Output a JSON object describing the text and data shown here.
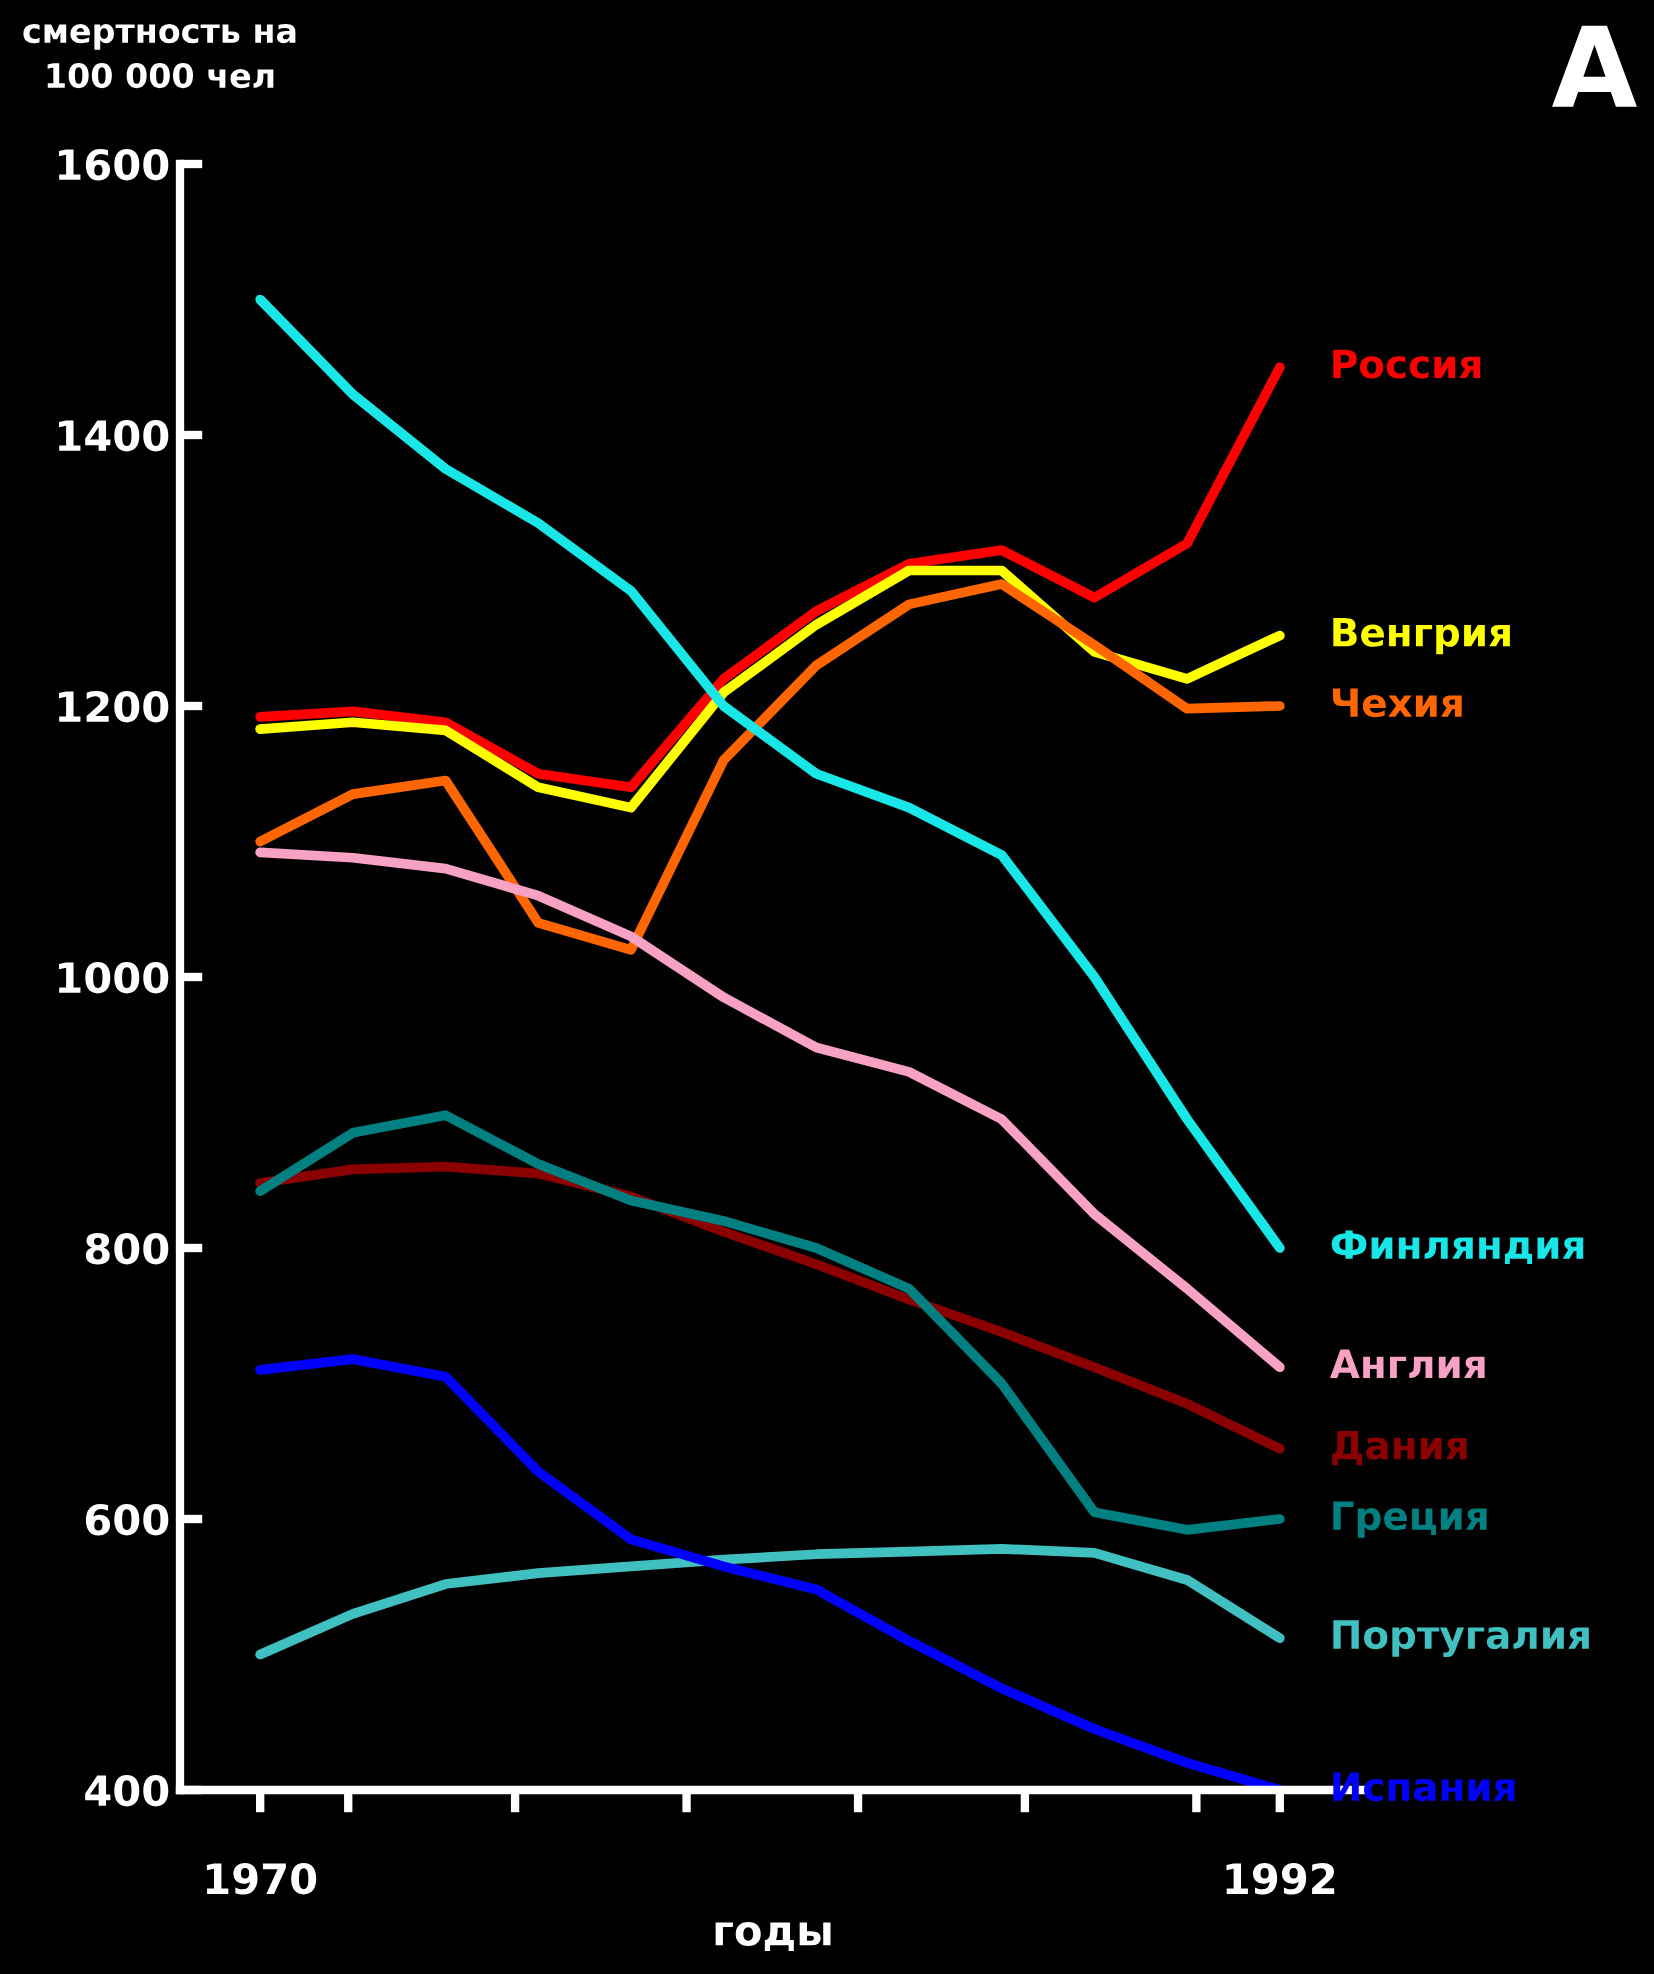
{
  "chart_data": {
    "type": "line",
    "ylabel": "смертность на\n100 000 чел",
    "xlabel": "годы",
    "annotations": [
      "A"
    ],
    "x": [
      1970,
      1972,
      1974,
      1976,
      1978,
      1980,
      1982,
      1984,
      1986,
      1988,
      1990,
      1992
    ],
    "series": [
      {
        "name": "Россия",
        "color": "#ff0000",
        "values": [
          1192,
          1196,
          1188,
          1150,
          1140,
          1220,
          1270,
          1305,
          1315,
          1280,
          1320,
          1450
        ]
      },
      {
        "name": "Венгрия",
        "color": "#ffff00",
        "values": [
          1183,
          1188,
          1182,
          1140,
          1125,
          1210,
          1260,
          1300,
          1300,
          1240,
          1220,
          1252
        ]
      },
      {
        "name": "Чехия",
        "color": "#ff6600",
        "values": [
          1100,
          1135,
          1145,
          1040,
          1020,
          1160,
          1230,
          1275,
          1290,
          1245,
          1198,
          1200
        ]
      },
      {
        "name": "Финляндия",
        "color": "#19e6e6",
        "values": [
          1500,
          1430,
          1375,
          1335,
          1285,
          1200,
          1150,
          1125,
          1090,
          1000,
          895,
          800
        ]
      },
      {
        "name": "Англия",
        "color": "#f7a1c4",
        "values": [
          1092,
          1088,
          1080,
          1060,
          1030,
          985,
          948,
          930,
          895,
          825,
          770,
          712
        ]
      },
      {
        "name": "Дания",
        "color": "#8b0000",
        "values": [
          848,
          858,
          860,
          855,
          838,
          812,
          788,
          762,
          738,
          712,
          685,
          652
        ]
      },
      {
        "name": "Греция",
        "color": "#008080",
        "values": [
          842,
          885,
          898,
          862,
          835,
          820,
          800,
          770,
          700,
          605,
          592,
          600
        ]
      },
      {
        "name": "Португалия",
        "color": "#40c0c0",
        "values": [
          500,
          530,
          552,
          560,
          565,
          570,
          574,
          576,
          578,
          575,
          555,
          512
        ]
      },
      {
        "name": "Испания",
        "color": "#0000ff",
        "values": [
          710,
          718,
          705,
          635,
          585,
          565,
          548,
          510,
          475,
          445,
          420,
          400
        ]
      }
    ],
    "xlim": [
      1968.27,
      1993.86
    ],
    "xticks": [
      {
        "value": 1970,
        "label": "1970"
      },
      {
        "value": 1971.9,
        "label": null
      },
      {
        "value": 1975.5,
        "label": null
      },
      {
        "value": 1979.2,
        "label": null
      },
      {
        "value": 1982.9,
        "label": null
      },
      {
        "value": 1986.5,
        "label": null
      },
      {
        "value": 1990.2,
        "label": null
      },
      {
        "value": 1992,
        "label": "1992"
      }
    ],
    "ylim": [
      400,
      1600
    ],
    "yticks": [
      400,
      600,
      800,
      1000,
      1200,
      1400,
      1600
    ],
    "grid": false,
    "legend": false,
    "marker": "none",
    "line_style": "solid"
  }
}
